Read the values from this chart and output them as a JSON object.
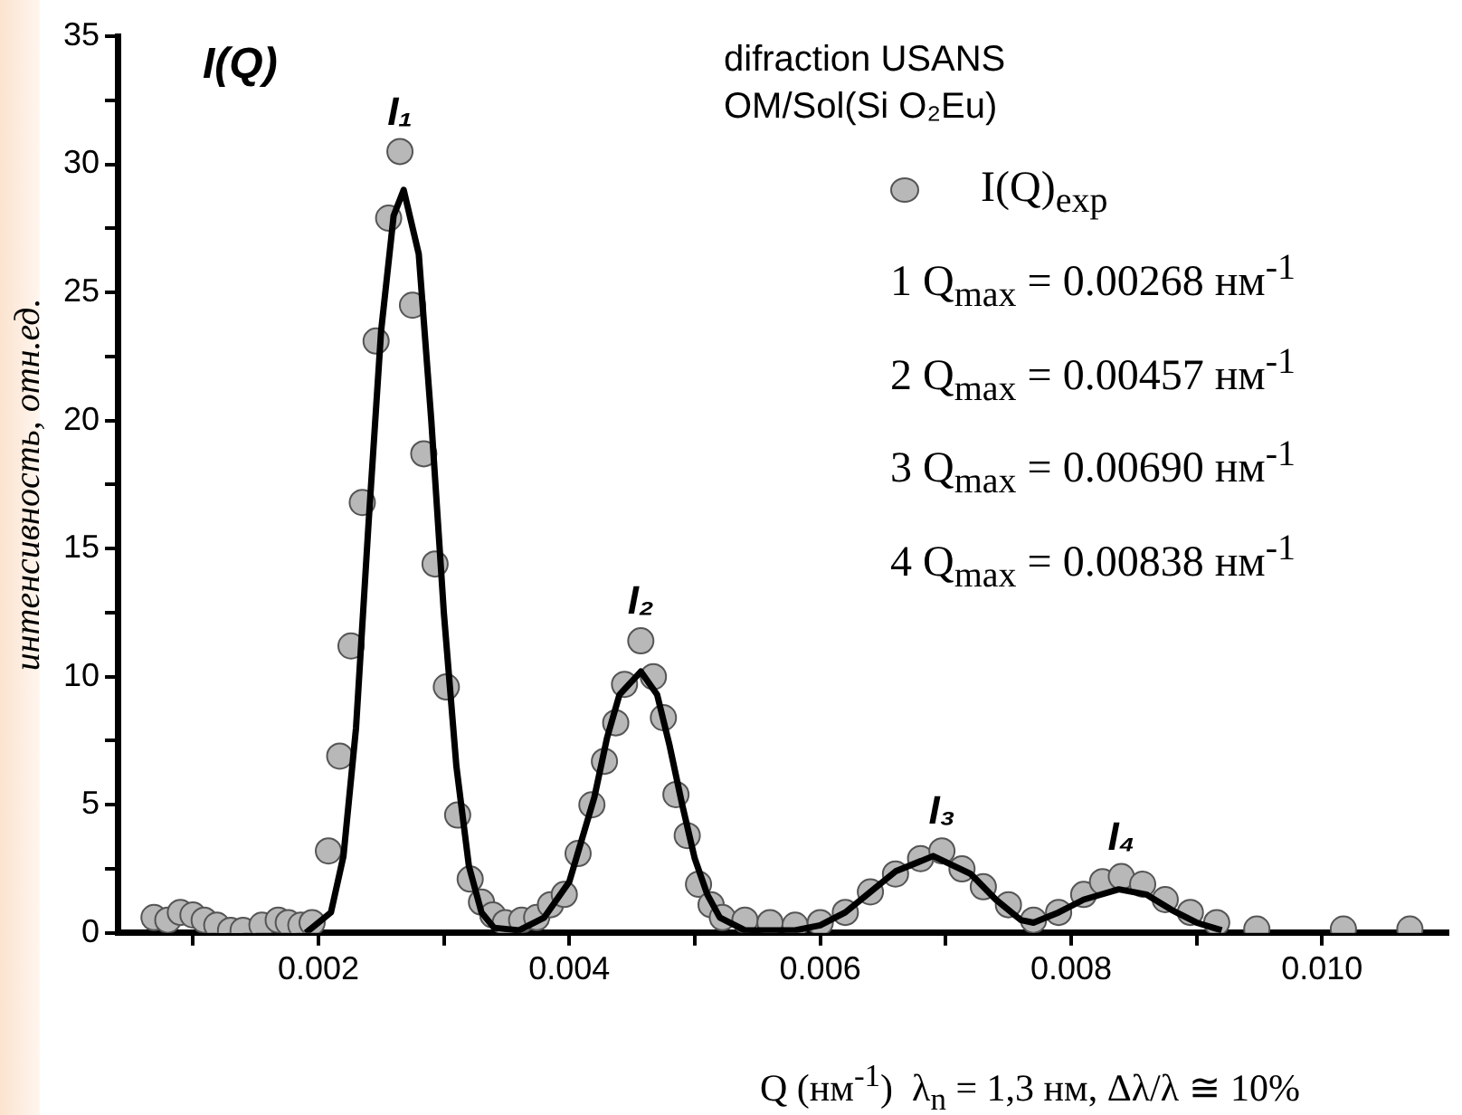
{
  "chart_data": {
    "type": "scatter",
    "title": "I(Q)",
    "subtitle": "difraction USANS\nOM/Sol(Si O₂Eu)",
    "xlabel": "Q (нм$^{-1}$)  λ$_{n}$ = 1,3 нм, Δλ/λ ≅ 10%",
    "ylabel": "интенсивность, отн.ед.",
    "xlim": [
      0.0004,
      0.011
    ],
    "ylim": [
      0,
      35
    ],
    "xticks": [
      {
        "value": 0.001,
        "label": null
      },
      0.002,
      {
        "value": 0.003,
        "label": null
      },
      0.004,
      {
        "value": 0.005,
        "label": null
      },
      0.006,
      {
        "value": 0.007,
        "label": null
      },
      0.008,
      {
        "value": 0.009,
        "label": null
      },
      {
        "value": 0.01,
        "label": "0.010"
      }
    ],
    "yticks": [
      0,
      {
        "value": 2.5,
        "label": null
      },
      5,
      {
        "value": 7.5,
        "label": null
      },
      10,
      {
        "value": 12.5,
        "label": null
      },
      15,
      {
        "value": 17.5,
        "label": null
      },
      20,
      {
        "value": 22.5,
        "label": null
      },
      25,
      {
        "value": 27.5,
        "label": null
      },
      30,
      {
        "value": 32.5,
        "label": null
      },
      35
    ],
    "grid": false,
    "legend": "top right",
    "marker": "circle",
    "series": [
      {
        "name": "I(Q)$_{exp}$",
        "color": "#b8b8b8",
        "x": [
          0.00069,
          0.0008,
          0.0009,
          0.001,
          0.00109,
          0.00119,
          0.0013,
          0.0014,
          0.00155,
          0.00168,
          0.00176,
          0.00186,
          0.00195,
          0.00208,
          0.00217,
          0.00226,
          0.00235,
          0.00246,
          0.00256,
          0.00265,
          0.00275,
          0.00284,
          0.00293,
          0.00302,
          0.00311,
          0.00321,
          0.0033,
          0.00339,
          0.00349,
          0.00362,
          0.00374,
          0.00385,
          0.00396,
          0.00407,
          0.00418,
          0.00428,
          0.00437,
          0.00444,
          0.00457,
          0.00467,
          0.00475,
          0.00485,
          0.00494,
          0.00503,
          0.00513,
          0.00522,
          0.0054,
          0.0056,
          0.0058,
          0.006,
          0.0062,
          0.0064,
          0.0066,
          0.0068,
          0.00697,
          0.00713,
          0.0073,
          0.0075,
          0.0077,
          0.0079,
          0.0081,
          0.00825,
          0.0084,
          0.00857,
          0.00875,
          0.00895,
          0.00916,
          0.00948,
          0.01017,
          0.0107
        ],
        "values": [
          0.6,
          0.5,
          0.8,
          0.7,
          0.5,
          0.3,
          0.1,
          0.1,
          0.3,
          0.5,
          0.4,
          0.3,
          0.4,
          3.2,
          6.9,
          11.2,
          16.8,
          23.1,
          27.9,
          30.5,
          24.5,
          18.7,
          14.4,
          9.6,
          4.6,
          2.1,
          1.2,
          0.7,
          0.4,
          0.5,
          0.6,
          1.1,
          1.5,
          3.1,
          5.0,
          6.7,
          8.2,
          9.7,
          11.4,
          10.0,
          8.4,
          5.4,
          3.8,
          1.9,
          1.1,
          0.6,
          0.5,
          0.4,
          0.3,
          0.4,
          0.8,
          1.6,
          2.3,
          2.9,
          3.2,
          2.5,
          1.8,
          1.1,
          0.5,
          0.8,
          1.5,
          2.0,
          2.2,
          1.9,
          1.3,
          0.8,
          0.4,
          0.15,
          0.15,
          0.15
        ]
      },
      {
        "type": "line",
        "color": "#000000",
        "marker": "none",
        "line_style": "solid",
        "x": [
          0.0019,
          0.0021,
          0.0022,
          0.0023,
          0.0024,
          0.0025,
          0.0026,
          0.00268,
          0.0028,
          0.0029,
          0.003,
          0.0031,
          0.0032,
          0.0033,
          0.0034,
          0.0036,
          0.0038,
          0.004,
          0.0042,
          0.0043,
          0.0044,
          0.00457,
          0.0047,
          0.0048,
          0.0049,
          0.005,
          0.0051,
          0.0052,
          0.0054,
          0.0058,
          0.006,
          0.0062,
          0.0064,
          0.0066,
          0.0069,
          0.0072,
          0.0074,
          0.0076,
          0.0077,
          0.0079,
          0.0081,
          0.00838,
          0.0086,
          0.0088,
          0.009,
          0.0092
        ],
        "values": [
          0,
          0.8,
          3,
          8,
          16,
          23.5,
          28,
          29,
          26.5,
          20,
          12.5,
          6.5,
          2.6,
          0.8,
          0.2,
          0.1,
          0.6,
          2,
          5.3,
          7.6,
          9.3,
          10.2,
          9.3,
          7.3,
          5,
          2.9,
          1.5,
          0.6,
          0.1,
          0.1,
          0.3,
          0.8,
          1.6,
          2.4,
          3.0,
          2.3,
          1.3,
          0.5,
          0.4,
          0.8,
          1.3,
          1.7,
          1.5,
          0.9,
          0.4,
          0.1
        ]
      }
    ],
    "annotations": [
      "1  Q$_{max}$ = 0.00268 нм$^{-1}$",
      "2  Q$_{max}$ = 0.00457 нм$^{-1}$",
      "3  Q$_{max}$ = 0.00690 нм$^{-1}$",
      "4  Q$_{max}$ = 0.00838 нм$^{-1}$",
      {
        "text": "I₁",
        "x": 0.00265,
        "y": 30.5
      },
      {
        "text": "I₂",
        "x": 0.00457,
        "y": 11.4
      },
      {
        "text": "I₃",
        "x": 0.00697,
        "y": 3.2
      },
      {
        "text": "I₄",
        "x": 0.0084,
        "y": 2.2
      }
    ]
  }
}
